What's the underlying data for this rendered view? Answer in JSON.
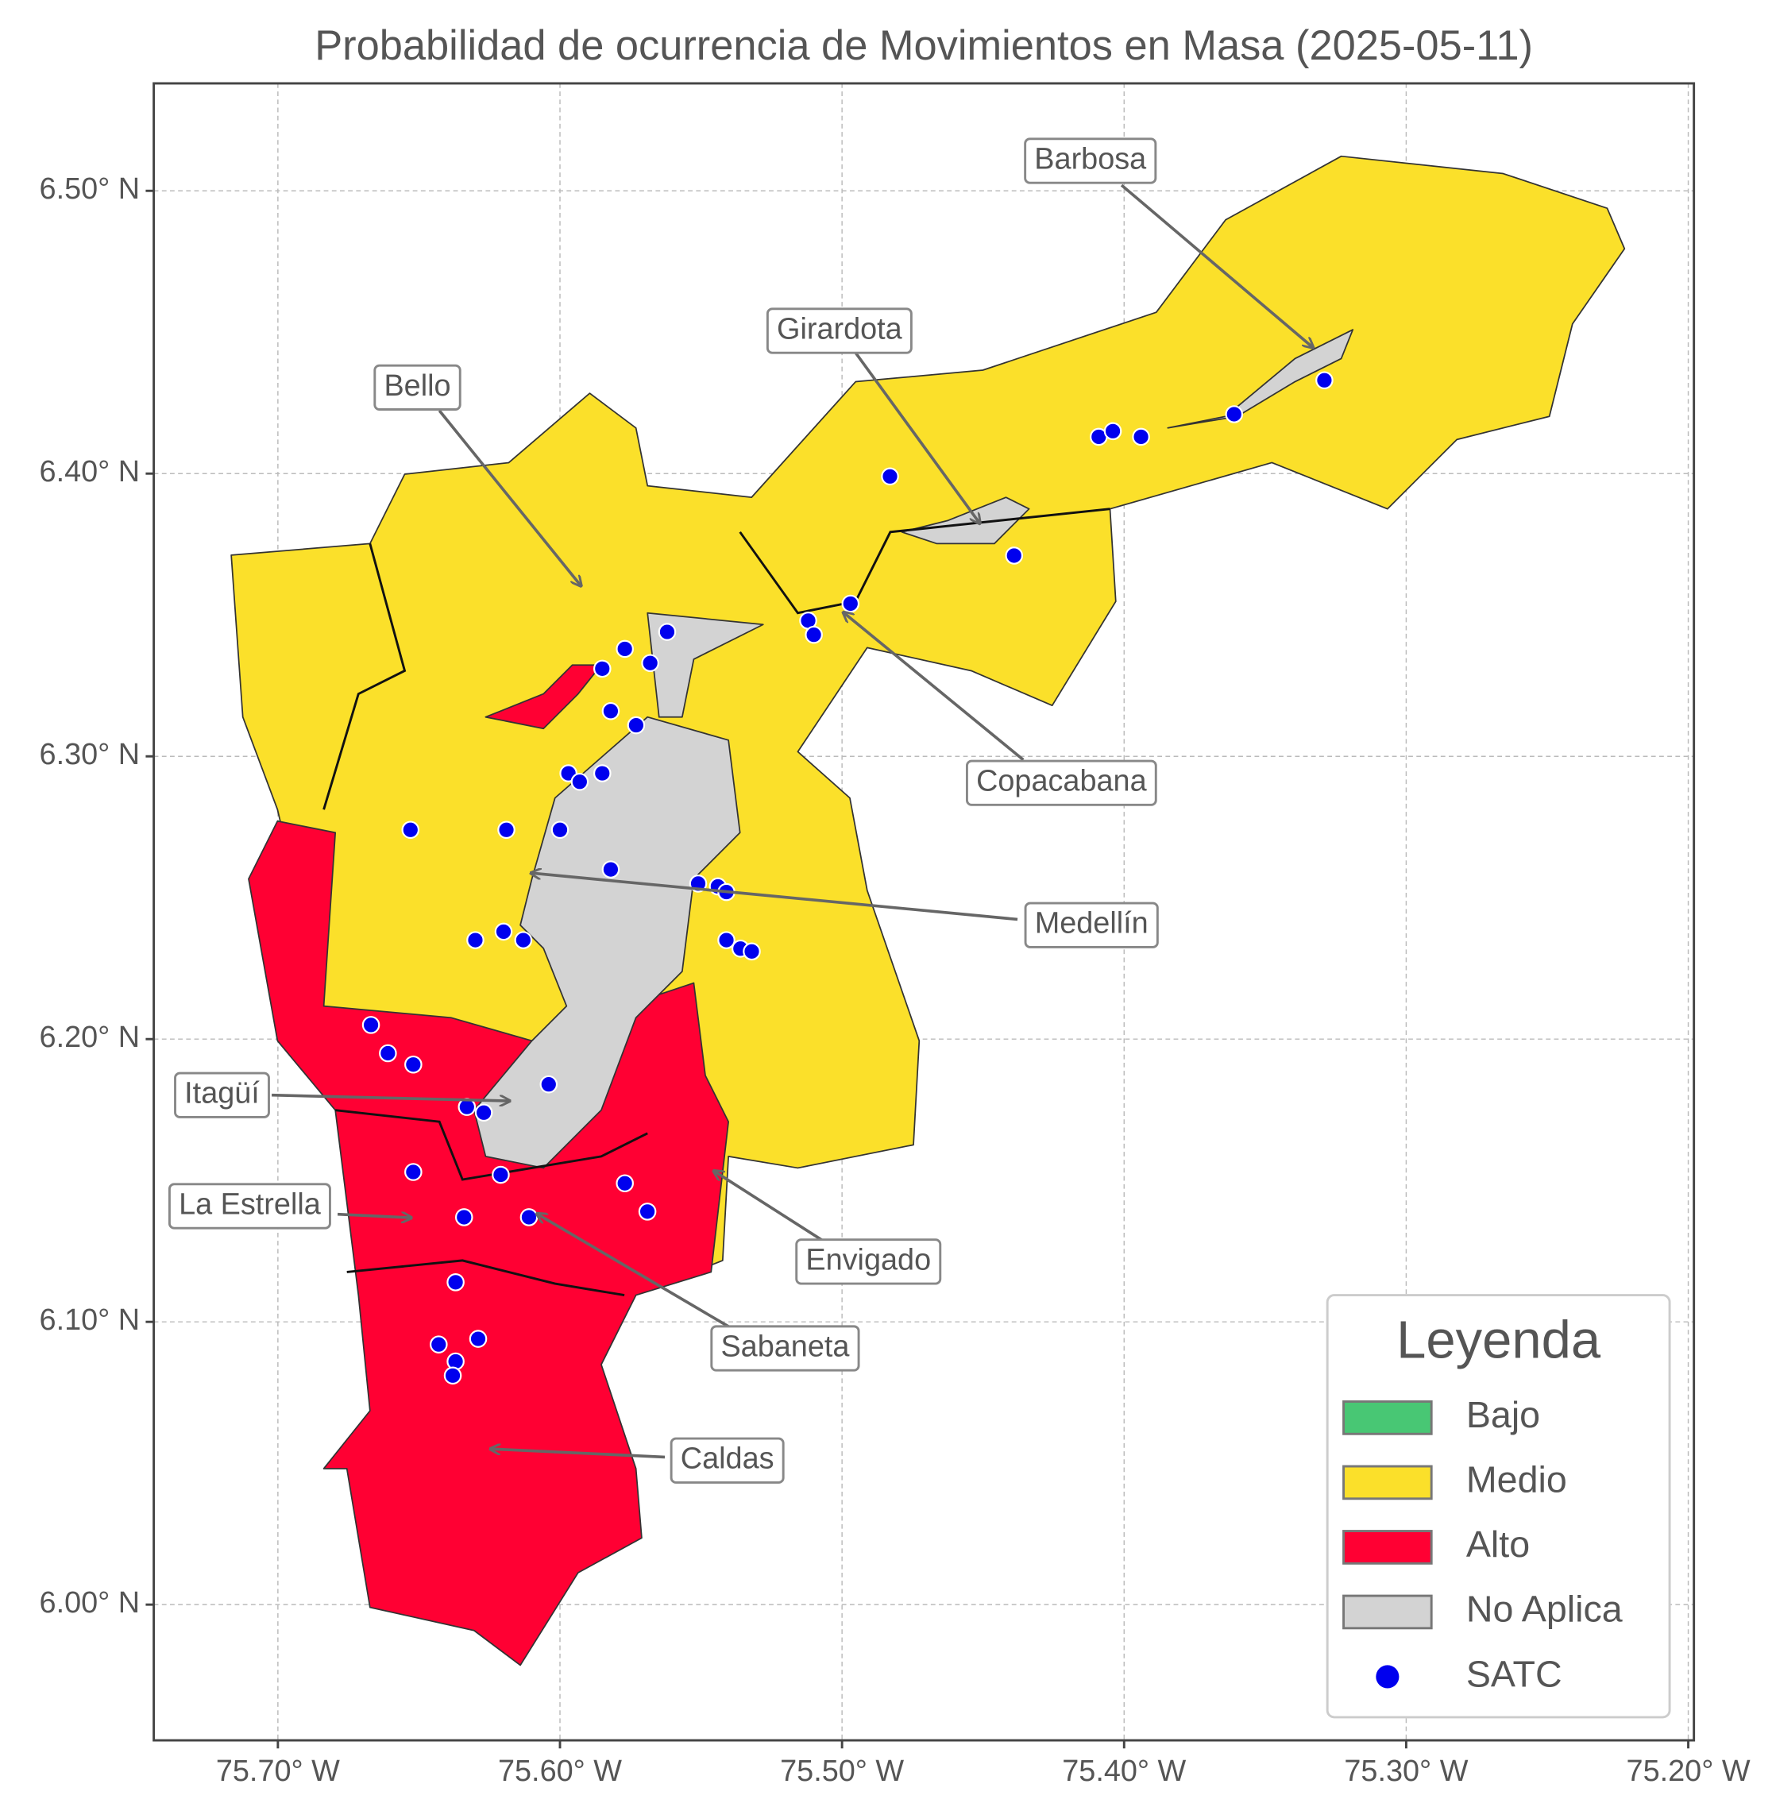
{
  "chart_data": {
    "type": "scatter",
    "title": "Probabilidad de ocurrencia de Movimientos en Masa (2025-05-11)",
    "xlim": [
      -75.744,
      -75.198
    ],
    "ylim": [
      5.952,
      6.538
    ],
    "xticks": [
      {
        "value": -75.7,
        "label": "75.70° W"
      },
      {
        "value": -75.6,
        "label": "75.60° W"
      },
      {
        "value": -75.5,
        "label": "75.50° W"
      },
      {
        "value": -75.4,
        "label": "75.40° W"
      },
      {
        "value": -75.3,
        "label": "75.30° W"
      },
      {
        "value": -75.2,
        "label": "75.20° W"
      }
    ],
    "yticks": [
      {
        "value": 6.0,
        "label": "6.00° N"
      },
      {
        "value": 6.1,
        "label": "6.10° N"
      },
      {
        "value": 6.2,
        "label": "6.20° N"
      },
      {
        "value": 6.3,
        "label": "6.30° N"
      },
      {
        "value": 6.4,
        "label": "6.40° N"
      },
      {
        "value": 6.5,
        "label": "6.50° N"
      }
    ],
    "grid": true,
    "series": [
      {
        "name": "SATC",
        "color": "#0000ee",
        "x": [
          -75.329,
          -75.361,
          -75.394,
          -75.409,
          -75.404,
          -75.483,
          -75.439,
          -75.497,
          -75.512,
          -75.51,
          -75.562,
          -75.577,
          -75.568,
          -75.585,
          -75.582,
          -75.573,
          -75.597,
          -75.593,
          -75.585,
          -75.653,
          -75.619,
          -75.6,
          -75.582,
          -75.551,
          -75.544,
          -75.541,
          -75.62,
          -75.63,
          -75.613,
          -75.541,
          -75.536,
          -75.532,
          -75.667,
          -75.661,
          -75.652,
          -75.604,
          -75.633,
          -75.627,
          -75.621,
          -75.652,
          -75.577,
          -75.634,
          -75.611,
          -75.569,
          -75.637,
          -75.643,
          -75.629,
          -75.637,
          -75.638
        ],
        "values": [
          6.433,
          6.421,
          6.413,
          6.413,
          6.415,
          6.399,
          6.371,
          6.354,
          6.348,
          6.343,
          6.344,
          6.338,
          6.333,
          6.331,
          6.316,
          6.311,
          6.294,
          6.291,
          6.294,
          6.274,
          6.274,
          6.274,
          6.26,
          6.255,
          6.254,
          6.252,
          6.238,
          6.235,
          6.235,
          6.235,
          6.232,
          6.231,
          6.205,
          6.195,
          6.191,
          6.184,
          6.176,
          6.174,
          6.152,
          6.153,
          6.149,
          6.137,
          6.137,
          6.139,
          6.114,
          6.092,
          6.094,
          6.086,
          6.081
        ]
      }
    ],
    "legend": {
      "title": "Leyenda",
      "corner": "lower right",
      "items": [
        {
          "label": "Bajo",
          "color": "#48c774"
        },
        {
          "label": "Medio",
          "color": "#fbe02a"
        },
        {
          "label": "Alto",
          "color": "#ff0033"
        },
        {
          "label": "No Aplica",
          "color": "#d3d3d3"
        }
      ]
    },
    "annotations": [
      "Barbosa",
      "Girardota",
      "Bello",
      "Copacabana",
      "Medellín",
      "Itagüí",
      "La Estrella",
      "Envigado",
      "Sabaneta",
      "Caldas"
    ]
  }
}
